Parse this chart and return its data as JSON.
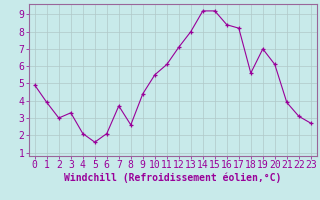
{
  "x": [
    0,
    1,
    2,
    3,
    4,
    5,
    6,
    7,
    8,
    9,
    10,
    11,
    12,
    13,
    14,
    15,
    16,
    17,
    18,
    19,
    20,
    21,
    22,
    23
  ],
  "y": [
    4.9,
    3.9,
    3.0,
    3.3,
    2.1,
    1.6,
    2.1,
    3.7,
    2.6,
    4.4,
    5.5,
    6.1,
    7.1,
    8.0,
    9.2,
    9.2,
    8.4,
    8.2,
    5.6,
    7.0,
    6.1,
    3.9,
    3.1,
    2.7
  ],
  "line_color": "#990099",
  "marker": "+",
  "marker_color": "#990099",
  "bg_color": "#c8eaea",
  "grid_color": "#b0c8c8",
  "xlabel": "Windchill (Refroidissement éolien,°C)",
  "ylabel": "",
  "title": "",
  "xlim": [
    -0.5,
    23.5
  ],
  "ylim": [
    0.8,
    9.6
  ],
  "yticks": [
    1,
    2,
    3,
    4,
    5,
    6,
    7,
    8,
    9
  ],
  "xticks": [
    0,
    1,
    2,
    3,
    4,
    5,
    6,
    7,
    8,
    9,
    10,
    11,
    12,
    13,
    14,
    15,
    16,
    17,
    18,
    19,
    20,
    21,
    22,
    23
  ],
  "xlabel_fontsize": 7,
  "tick_fontsize": 7,
  "axis_label_color": "#990099",
  "tick_label_color": "#990099",
  "spine_color": "#996699"
}
